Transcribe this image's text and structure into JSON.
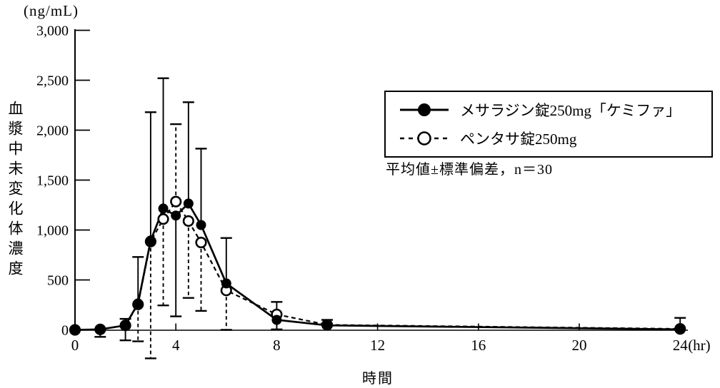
{
  "colors": {
    "ink": "#000000",
    "background": "#ffffff"
  },
  "y_axis": {
    "unit": "(ng/mL)",
    "title": "血漿中未変化体濃度",
    "tick_labels": [
      "0",
      "500",
      "1,000",
      "1,500",
      "2,000",
      "2,500",
      "3,000"
    ]
  },
  "x_axis": {
    "title": "時間",
    "unit": "(hr)",
    "tick_labels": [
      "0",
      "4",
      "8",
      "12",
      "16",
      "20",
      "24"
    ]
  },
  "legend": {
    "items": [
      {
        "label": "メサラジン錠250mg「ケミファ」",
        "marker": "filled-circle-solid-line"
      },
      {
        "label": "ペンタサ錠250mg",
        "marker": "open-circle-dashed-line"
      }
    ],
    "note": "平均値±標準偏差，n＝30"
  },
  "chart_data": {
    "type": "line",
    "title": "",
    "xlabel": "時間 (hr)",
    "ylabel": "血漿中未変化体濃度 (ng/mL)",
    "xlim": [
      0,
      24
    ],
    "ylim": [
      0,
      3000
    ],
    "xticks": [
      0,
      4,
      8,
      12,
      16,
      20,
      24
    ],
    "yticks": [
      0,
      500,
      1000,
      1500,
      2000,
      2500,
      3000
    ],
    "grid": false,
    "legend_position": "upper right",
    "error_note": "mean ± SD, n=30",
    "x": [
      0,
      1,
      2,
      2.5,
      3,
      3.5,
      4,
      4.5,
      5,
      6,
      8,
      10,
      24
    ],
    "series": [
      {
        "name": "メサラジン錠250mg「ケミファ」",
        "line": "solid",
        "marker": "filled-circle",
        "values": [
          0,
          5,
          45,
          265,
          895,
          1215,
          1145,
          1265,
          1050,
          465,
          100,
          45,
          5
        ],
        "err_hi": [
          null,
          null,
          110,
          730,
          2180,
          2520,
          null,
          2280,
          1815,
          920,
          280,
          100,
          120
        ],
        "err_lo": [
          null,
          -70,
          -105,
          null,
          null,
          null,
          135,
          null,
          null,
          null,
          5,
          null,
          null
        ]
      },
      {
        "name": "ペンタサ錠250mg",
        "line": "dashed",
        "marker": "open-circle",
        "values": [
          0,
          5,
          45,
          255,
          885,
          1110,
          1285,
          1090,
          875,
          395,
          155,
          50,
          10
        ],
        "err_hi": [
          null,
          null,
          null,
          null,
          null,
          null,
          2060,
          null,
          null,
          null,
          null,
          null,
          null
        ],
        "err_lo": [
          null,
          null,
          null,
          -115,
          -285,
          245,
          null,
          320,
          190,
          0,
          null,
          null,
          null
        ]
      }
    ]
  }
}
